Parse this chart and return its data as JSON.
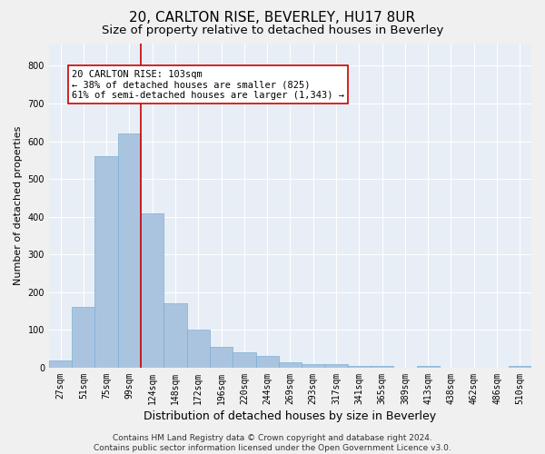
{
  "title": "20, CARLTON RISE, BEVERLEY, HU17 8UR",
  "subtitle": "Size of property relative to detached houses in Beverley",
  "xlabel": "Distribution of detached houses by size in Beverley",
  "ylabel": "Number of detached properties",
  "categories": [
    "27sqm",
    "51sqm",
    "75sqm",
    "99sqm",
    "124sqm",
    "148sqm",
    "172sqm",
    "196sqm",
    "220sqm",
    "244sqm",
    "269sqm",
    "293sqm",
    "317sqm",
    "341sqm",
    "365sqm",
    "389sqm",
    "413sqm",
    "438sqm",
    "462sqm",
    "486sqm",
    "510sqm"
  ],
  "values": [
    20,
    160,
    560,
    620,
    410,
    170,
    100,
    55,
    40,
    30,
    15,
    10,
    10,
    5,
    5,
    0,
    5,
    0,
    0,
    0,
    5
  ],
  "bar_color": "#aac4e0",
  "bar_edge_color": "#7aafd4",
  "vline_x": 3.5,
  "vline_color": "#cc0000",
  "annotation_text": "20 CARLTON RISE: 103sqm\n← 38% of detached houses are smaller (825)\n61% of semi-detached houses are larger (1,343) →",
  "annotation_box_color": "#ffffff",
  "annotation_box_edge": "#cc0000",
  "ylim": [
    0,
    860
  ],
  "yticks": [
    0,
    100,
    200,
    300,
    400,
    500,
    600,
    700,
    800
  ],
  "background_color": "#e8eef5",
  "grid_color": "#ffffff",
  "footer": "Contains HM Land Registry data © Crown copyright and database right 2024.\nContains public sector information licensed under the Open Government Licence v3.0.",
  "title_fontsize": 11,
  "subtitle_fontsize": 9.5,
  "xlabel_fontsize": 9,
  "ylabel_fontsize": 8,
  "footer_fontsize": 6.5,
  "tick_labelsize": 7
}
